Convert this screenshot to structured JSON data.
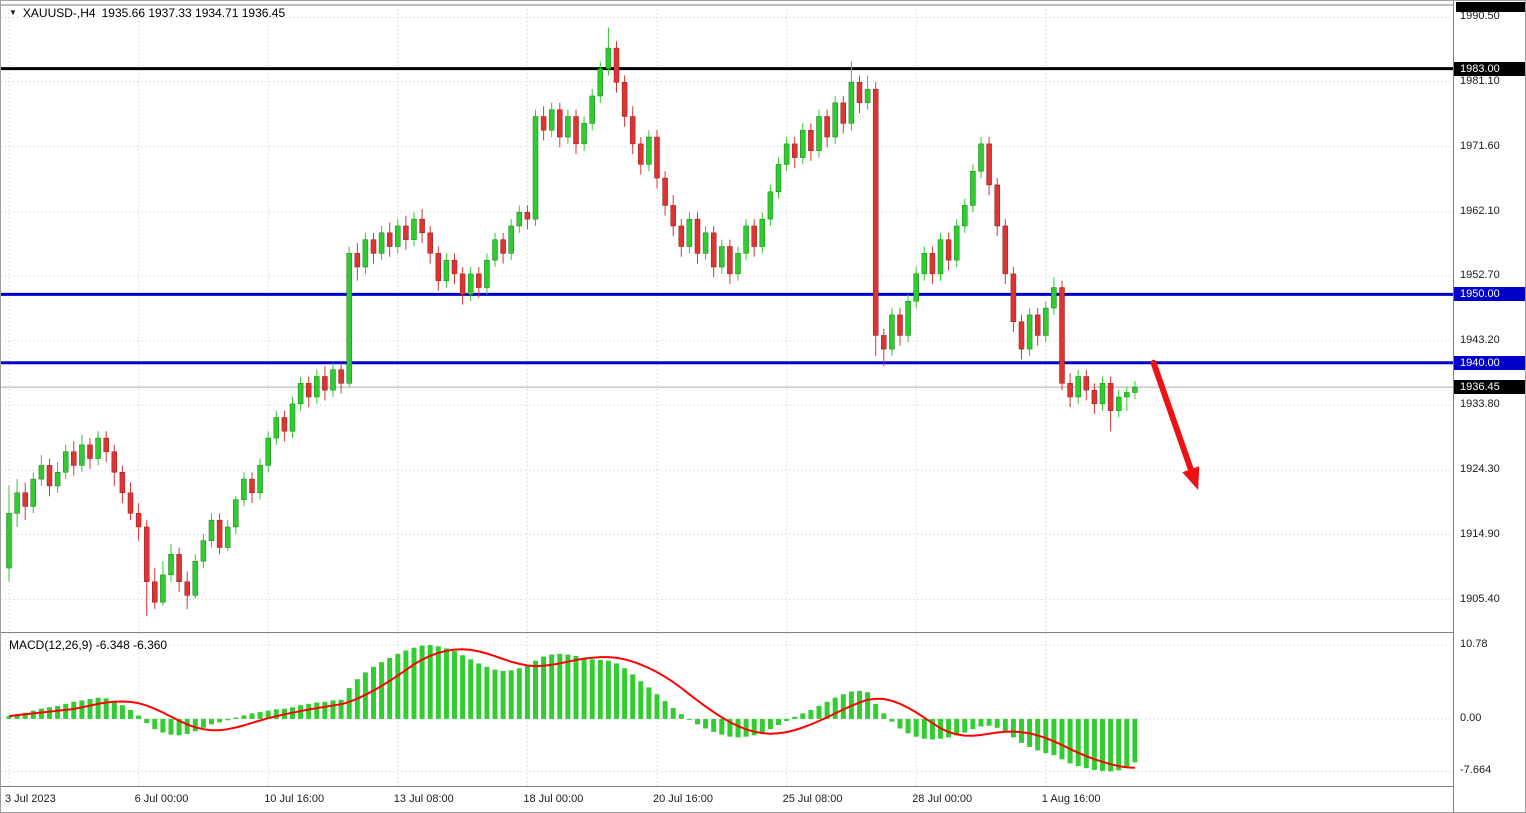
{
  "header": {
    "icon": "triangle-down",
    "symbol": "XAUUSD-,H4",
    "ohlc": "1935.66 1937.33 1934.71 1936.45"
  },
  "colors": {
    "up": "#2ECC2E",
    "down": "#DD3333",
    "histogram": "#33CC33",
    "signal_line": "#FF0000",
    "grid": "#C9C9C9",
    "current_price_line": "#AAAAAA",
    "arrow": "#EE1111",
    "badge_black": "#000000",
    "badge_blue": "#0000C8",
    "border": "#808080",
    "background": "#FFFFFF"
  },
  "chart_data": {
    "type": "candlestick",
    "symbol": "XAUUSD-",
    "timeframe": "H4",
    "current_ohlc": {
      "open": 1935.66,
      "high": 1937.33,
      "low": 1934.71,
      "close": 1936.45
    },
    "price_axis": [
      {
        "label": "1990.50",
        "value": 1990.5
      },
      {
        "label": "1981.10",
        "value": 1981.1
      },
      {
        "label": "1971.60",
        "value": 1971.6
      },
      {
        "label": "1962.10",
        "value": 1962.1
      },
      {
        "label": "1952.70",
        "value": 1952.7
      },
      {
        "label": "1943.20",
        "value": 1943.2
      },
      {
        "label": "1933.80",
        "value": 1933.8
      },
      {
        "label": "1924.30",
        "value": 1924.3
      },
      {
        "label": "1914.90",
        "value": 1914.9
      },
      {
        "label": "1905.40",
        "value": 1905.4
      }
    ],
    "level_lines": [
      {
        "label": "1983.00",
        "price": 1983.0,
        "color": "#000000",
        "width": 3
      },
      {
        "label": "1950.00",
        "price": 1950.0,
        "color": "#0000C8",
        "width": 3
      },
      {
        "label": "1940.00",
        "price": 1940.0,
        "color": "#0000C8",
        "width": 3
      }
    ],
    "current_price": {
      "label": "1936.45",
      "value": 1936.45
    },
    "x_axis": [
      {
        "label": "3 Jul 2023",
        "bar": 0
      },
      {
        "label": "6 Jul 00:00",
        "bar": 16
      },
      {
        "label": "10 Jul 16:00",
        "bar": 32
      },
      {
        "label": "13 Jul 08:00",
        "bar": 48
      },
      {
        "label": "18 Jul 00:00",
        "bar": 64
      },
      {
        "label": "20 Jul 16:00",
        "bar": 80
      },
      {
        "label": "25 Jul 08:00",
        "bar": 96
      },
      {
        "label": "28 Jul 00:00",
        "bar": 112
      },
      {
        "label": "1 Aug 16:00",
        "bar": 128
      }
    ],
    "candles": [
      [
        1910,
        1922,
        1908,
        1918
      ],
      [
        1918,
        1923,
        1916,
        1921
      ],
      [
        1921,
        1922.5,
        1917,
        1919
      ],
      [
        1919,
        1924,
        1918,
        1923
      ],
      [
        1923,
        1926.5,
        1922,
        1925
      ],
      [
        1925,
        1926,
        1920.5,
        1922
      ],
      [
        1922,
        1925.5,
        1921,
        1924
      ],
      [
        1924,
        1928,
        1923,
        1927
      ],
      [
        1927,
        1928.5,
        1923.5,
        1925
      ],
      [
        1925,
        1929.5,
        1924,
        1928
      ],
      [
        1928,
        1929,
        1924.5,
        1926
      ],
      [
        1926,
        1930,
        1925,
        1929
      ],
      [
        1929,
        1930,
        1925.5,
        1927
      ],
      [
        1927,
        1928,
        1922,
        1924
      ],
      [
        1924,
        1925,
        1919.5,
        1921
      ],
      [
        1921,
        1922.5,
        1917,
        1918
      ],
      [
        1918,
        1919.5,
        1914,
        1916
      ],
      [
        1916,
        1917,
        1903,
        1908
      ],
      [
        1908,
        1910,
        1904,
        1905
      ],
      [
        1905,
        1911,
        1904.5,
        1909
      ],
      [
        1909,
        1913.5,
        1908,
        1912
      ],
      [
        1912,
        1913,
        1906.5,
        1908
      ],
      [
        1908,
        1909.5,
        1904,
        1906
      ],
      [
        1906,
        1912,
        1905.5,
        1911
      ],
      [
        1911,
        1915,
        1910,
        1914
      ],
      [
        1914,
        1918,
        1913,
        1917
      ],
      [
        1917,
        1918,
        1912,
        1913
      ],
      [
        1913,
        1917,
        1912.5,
        1916
      ],
      [
        1916,
        1920.5,
        1915,
        1920
      ],
      [
        1920,
        1924,
        1919,
        1923
      ],
      [
        1923,
        1924,
        1919.5,
        1921
      ],
      [
        1921,
        1926,
        1920,
        1925
      ],
      [
        1925,
        1930,
        1924,
        1929
      ],
      [
        1929,
        1933,
        1928,
        1932
      ],
      [
        1932,
        1933,
        1928.5,
        1930
      ],
      [
        1930,
        1935,
        1929,
        1934
      ],
      [
        1934,
        1938,
        1933,
        1937
      ],
      [
        1937,
        1938,
        1933.5,
        1935
      ],
      [
        1935,
        1939,
        1934,
        1938
      ],
      [
        1938,
        1939.5,
        1934.5,
        1936
      ],
      [
        1936,
        1940,
        1935,
        1939
      ],
      [
        1939,
        1940,
        1935.5,
        1937
      ],
      [
        1937,
        1957,
        1936.5,
        1956
      ],
      [
        1956,
        1957.5,
        1952,
        1954
      ],
      [
        1954,
        1959,
        1953,
        1958
      ],
      [
        1958,
        1959,
        1954.5,
        1956
      ],
      [
        1956,
        1960,
        1955,
        1959
      ],
      [
        1959,
        1960.5,
        1955.5,
        1957
      ],
      [
        1957,
        1961,
        1956,
        1960
      ],
      [
        1960,
        1961.5,
        1956.5,
        1958
      ],
      [
        1958,
        1962,
        1957,
        1961
      ],
      [
        1961,
        1962.5,
        1957.5,
        1959
      ],
      [
        1959,
        1960,
        1954.5,
        1956
      ],
      [
        1956,
        1957,
        1950.5,
        1952
      ],
      [
        1952,
        1956,
        1951,
        1955
      ],
      [
        1955,
        1956,
        1951.5,
        1953
      ],
      [
        1953,
        1954,
        1948.5,
        1950
      ],
      [
        1950,
        1954,
        1949,
        1953
      ],
      [
        1953,
        1954,
        1949.5,
        1951
      ],
      [
        1951,
        1956,
        1950,
        1955
      ],
      [
        1955,
        1959,
        1954,
        1958
      ],
      [
        1958,
        1959,
        1954.5,
        1956
      ],
      [
        1956,
        1961,
        1955,
        1960
      ],
      [
        1960,
        1963,
        1959,
        1962
      ],
      [
        1962,
        1963,
        1959.5,
        1961
      ],
      [
        1961,
        1977,
        1960,
        1976
      ],
      [
        1976,
        1977.5,
        1972.5,
        1974
      ],
      [
        1974,
        1978,
        1973,
        1977
      ],
      [
        1977,
        1978,
        1971.5,
        1973
      ],
      [
        1973,
        1977,
        1972,
        1976
      ],
      [
        1976,
        1977,
        1970.5,
        1972
      ],
      [
        1972,
        1976,
        1971,
        1975
      ],
      [
        1975,
        1980,
        1974,
        1979
      ],
      [
        1979,
        1984,
        1978,
        1983
      ],
      [
        1983,
        1989,
        1982,
        1986
      ],
      [
        1986,
        1987,
        1979.5,
        1981
      ],
      [
        1981,
        1982,
        1974.5,
        1976
      ],
      [
        1976,
        1977.5,
        1970.5,
        1972
      ],
      [
        1972,
        1973,
        1967.5,
        1969
      ],
      [
        1969,
        1974,
        1968,
        1973
      ],
      [
        1973,
        1974,
        1965.5,
        1967
      ],
      [
        1967,
        1968,
        1961.5,
        1963
      ],
      [
        1963,
        1964.5,
        1958.5,
        1960
      ],
      [
        1960,
        1961,
        1955.5,
        1957
      ],
      [
        1957,
        1962,
        1956,
        1961
      ],
      [
        1961,
        1962,
        1954.5,
        1956
      ],
      [
        1956,
        1960,
        1955,
        1959
      ],
      [
        1959,
        1960,
        1952.5,
        1954
      ],
      [
        1954,
        1958,
        1953,
        1957
      ],
      [
        1957,
        1958,
        1951.5,
        1953
      ],
      [
        1953,
        1957,
        1952,
        1956
      ],
      [
        1956,
        1961,
        1955,
        1960
      ],
      [
        1960,
        1961,
        1955.5,
        1957
      ],
      [
        1957,
        1962,
        1956,
        1961
      ],
      [
        1961,
        1966,
        1960,
        1965
      ],
      [
        1965,
        1970,
        1964,
        1969
      ],
      [
        1969,
        1973,
        1968,
        1972
      ],
      [
        1972,
        1973,
        1968.5,
        1970
      ],
      [
        1970,
        1975,
        1969,
        1974
      ],
      [
        1974,
        1975,
        1969.5,
        1971
      ],
      [
        1971,
        1977,
        1970,
        1976
      ],
      [
        1976,
        1977,
        1971.5,
        1973
      ],
      [
        1973,
        1979,
        1972,
        1978
      ],
      [
        1978,
        1979,
        1973.5,
        1975
      ],
      [
        1975,
        1984,
        1974,
        1981
      ],
      [
        1981,
        1982,
        1976.5,
        1978
      ],
      [
        1978,
        1982,
        1977,
        1980
      ],
      [
        1980,
        1981,
        1941,
        1944
      ],
      [
        1944,
        1945,
        1939.5,
        1942
      ],
      [
        1942,
        1948,
        1941,
        1947
      ],
      [
        1947,
        1948,
        1942.5,
        1944
      ],
      [
        1944,
        1950,
        1943,
        1949
      ],
      [
        1949,
        1954,
        1948,
        1953
      ],
      [
        1953,
        1957,
        1952,
        1956
      ],
      [
        1956,
        1957,
        1951.5,
        1953
      ],
      [
        1953,
        1959,
        1952,
        1958
      ],
      [
        1958,
        1959,
        1953.5,
        1955
      ],
      [
        1955,
        1961,
        1954,
        1960
      ],
      [
        1960,
        1964,
        1959,
        1963
      ],
      [
        1963,
        1969,
        1962,
        1968
      ],
      [
        1968,
        1973,
        1967,
        1972
      ],
      [
        1972,
        1973,
        1964.5,
        1966
      ],
      [
        1966,
        1967,
        1958.5,
        1960
      ],
      [
        1960,
        1961,
        1951.5,
        1953
      ],
      [
        1953,
        1954,
        1944.5,
        1946
      ],
      [
        1946,
        1947,
        1940.5,
        1942
      ],
      [
        1942,
        1948,
        1941,
        1947
      ],
      [
        1947,
        1948,
        1942.5,
        1944
      ],
      [
        1944,
        1949,
        1943,
        1948
      ],
      [
        1948,
        1952.5,
        1947,
        1951
      ],
      [
        1951,
        1952,
        1936,
        1937
      ],
      [
        1937,
        1938.5,
        1933.5,
        1935
      ],
      [
        1935,
        1939,
        1934,
        1938
      ],
      [
        1938,
        1939,
        1934.5,
        1936
      ],
      [
        1936,
        1937,
        1932.5,
        1934
      ],
      [
        1934,
        1938,
        1933,
        1937
      ],
      [
        1937,
        1938,
        1930,
        1933
      ],
      [
        1933,
        1936,
        1932,
        1935
      ],
      [
        1935,
        1936.5,
        1933,
        1935.66
      ],
      [
        1935.66,
        1937.33,
        1934.71,
        1936.45
      ]
    ],
    "macd": {
      "name": "MACD(12,26,9)",
      "values": "-6.348 -6.360",
      "axis": [
        {
          "label": "10.78",
          "value": 10.78
        },
        {
          "label": "0.00",
          "value": 0
        },
        {
          "label": "-7.664",
          "value": -7.664
        }
      ],
      "histogram": [
        0.4,
        0.7,
        0.9,
        1.2,
        1.5,
        1.7,
        1.9,
        2.2,
        2.5,
        2.7,
        2.9,
        3.1,
        3.0,
        2.6,
        2.0,
        1.3,
        0.5,
        -0.6,
        -1.5,
        -2.0,
        -2.3,
        -2.4,
        -2.2,
        -1.8,
        -1.3,
        -0.8,
        -0.5,
        -0.2,
        0.2,
        0.5,
        0.8,
        1.0,
        1.2,
        1.4,
        1.5,
        1.7,
        2.0,
        2.2,
        2.4,
        2.5,
        2.7,
        2.8,
        4.5,
        5.8,
        6.8,
        7.6,
        8.3,
        8.9,
        9.5,
        10.0,
        10.4,
        10.7,
        10.78,
        10.6,
        10.3,
        9.9,
        9.3,
        8.7,
        8.1,
        7.6,
        7.2,
        7.0,
        7.1,
        7.4,
        7.8,
        8.5,
        9.1,
        9.4,
        9.5,
        9.4,
        9.2,
        8.9,
        8.7,
        8.6,
        8.5,
        8.1,
        7.4,
        6.5,
        5.5,
        4.6,
        3.6,
        2.6,
        1.6,
        0.7,
        -0.1,
        -0.8,
        -1.4,
        -1.9,
        -2.3,
        -2.6,
        -2.7,
        -2.6,
        -2.4,
        -2.0,
        -1.5,
        -0.9,
        -0.3,
        0.3,
        0.8,
        1.3,
        1.9,
        2.5,
        3.1,
        3.6,
        4.0,
        4.1,
        3.9,
        2.2,
        0.8,
        -0.4,
        -1.4,
        -2.1,
        -2.6,
        -2.9,
        -3.0,
        -2.9,
        -2.7,
        -2.4,
        -2.0,
        -1.5,
        -1.1,
        -1.0,
        -1.3,
        -1.9,
        -2.7,
        -3.5,
        -4.1,
        -4.6,
        -5.0,
        -5.3,
        -5.9,
        -6.5,
        -6.9,
        -7.2,
        -7.45,
        -7.6,
        -7.66,
        -7.5,
        -7.0,
        -6.348
      ]
    },
    "arrow": {
      "from_bar": 141.3,
      "from_price": 1940.0,
      "to_bar": 146.8,
      "to_price": 1921.4
    }
  }
}
